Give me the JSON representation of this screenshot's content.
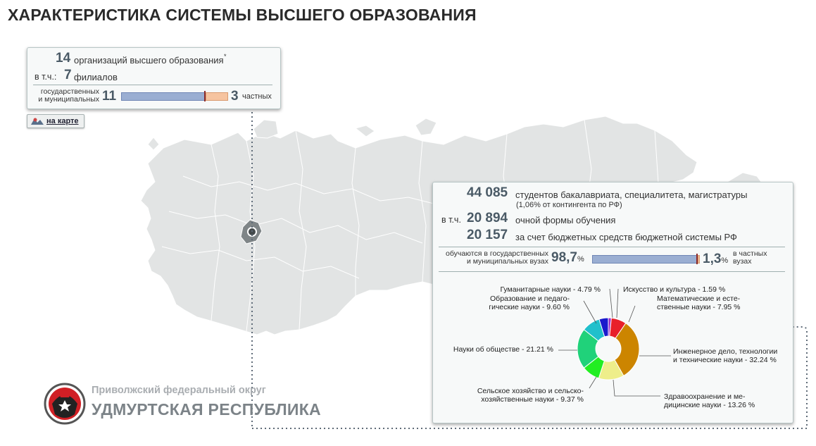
{
  "title": "ХАРАКТЕРИСТИКА СИСТЕМЫ ВЫСШЕГО ОБРАЗОВАНИЯ",
  "orgs": {
    "count": "14",
    "count_text": "организаций высшего образования",
    "asterisk": "*",
    "branches_prefix": "в т.ч.:",
    "branches_count": "7",
    "branches_text": "филиалов",
    "state_label_1": "государственных",
    "state_label_2": "и муниципальных",
    "state_count": "11",
    "private_count": "3",
    "private_label": "частных",
    "state_value": 11,
    "private_value": 3
  },
  "map_button": {
    "label": "на карте",
    "icon": "map-icon"
  },
  "students": {
    "total": "44 085",
    "total_text": "студентов бакалавриата, специалитета, магистратуры",
    "share_text": "(1,06% от контингента по РФ)",
    "fulltime_prefix": "в т.ч.",
    "fulltime_count": "20 894",
    "fulltime_text": "очной формы обучения",
    "budget_count": "20 157",
    "budget_text": "за счет бюджетных средств бюджетной системы РФ",
    "state_study_label_1": "обучаются в государственных",
    "state_study_label_2": "и муниципальных вузах",
    "state_pct": "98,7",
    "state_pct_sign": "%",
    "private_pct": "1,3",
    "private_pct_sign": "%",
    "private_label_1": "в частных",
    "private_label_2": "вузах",
    "state_value": 98.7,
    "private_value": 1.3
  },
  "region": {
    "district": "Приволжский федеральный округ",
    "name": "УДМУРТСКАЯ РЕСПУБЛИКА",
    "emblem_icon": "udmurtia-emblem-icon"
  },
  "chart_data": {
    "type": "pie",
    "title": "",
    "slices": [
      {
        "label_1": "Искусство и культура - 1.59 %",
        "label_2": "",
        "value": 1.59,
        "color": "#9b2bc9"
      },
      {
        "label_1": "Математические и есте-",
        "label_2": "ственные науки - 7.95 %",
        "value": 7.95,
        "color": "#e8202a"
      },
      {
        "label_1": "Инженерное дело, технологии",
        "label_2": "и технические науки - 32.24 %",
        "value": 32.24,
        "color": "#cc8500"
      },
      {
        "label_1": "Здравоохранение и ме-",
        "label_2": "дицинские науки - 13.26 %",
        "value": 13.26,
        "color": "#eeee8a"
      },
      {
        "label_1": "Сельское хозяйство и сельско-",
        "label_2": "хозяйственные науки - 9.37 %",
        "value": 9.37,
        "color": "#22ee22"
      },
      {
        "label_1": "Науки об обществе - 21.21 %",
        "label_2": "",
        "value": 21.21,
        "color": "#20d27a"
      },
      {
        "label_1": "Образование и педаго-",
        "label_2": "гические науки - 9.60 %",
        "value": 9.6,
        "color": "#20c0cc"
      },
      {
        "label_1": "Гуманитарные науки - 4.79 %",
        "label_2": "",
        "value": 4.79,
        "color": "#1a1acc"
      }
    ]
  }
}
